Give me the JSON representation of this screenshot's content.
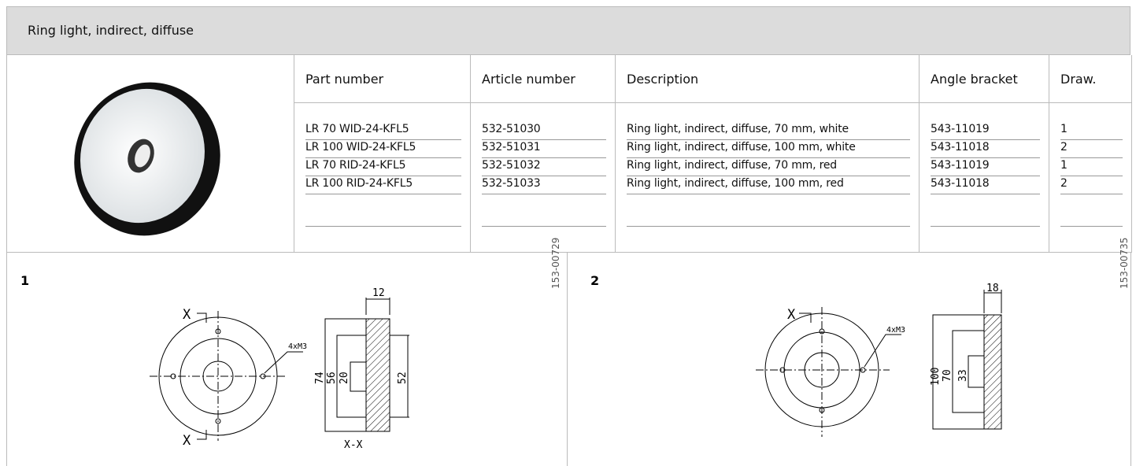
{
  "header": {
    "title": "Ring light, indirect, diffuse"
  },
  "table": {
    "columns": [
      "Part number",
      "Article number",
      "Description",
      "Angle bracket",
      "Draw."
    ],
    "rows": [
      [
        "LR 70 WID-24-KFL5",
        "532-51030",
        "Ring light, indirect, diffuse, 70 mm, white",
        "543-11019",
        "1"
      ],
      [
        "LR 100 WID-24-KFL5",
        "532-51031",
        "Ring light, indirect, diffuse, 100 mm, white",
        "543-11018",
        "2"
      ],
      [
        "LR 70 RID-24-KFL5",
        "532-51032",
        "Ring light, indirect, diffuse, 70 mm, red",
        "543-11019",
        "1"
      ],
      [
        "LR 100 RID-24-KFL5",
        "532-51033",
        "Ring light, indirect, diffuse, 100 mm, red",
        "543-11018",
        "2"
      ]
    ]
  },
  "drawings": [
    {
      "label": "1",
      "code": "153-00729",
      "annotations": [
        "X",
        "X",
        "12",
        "4xM3",
        "74",
        "56",
        "20",
        "52",
        "X-X"
      ]
    },
    {
      "label": "2",
      "code": "153-00735",
      "annotations": [
        "X",
        "4xM3",
        "18",
        "100",
        "70",
        "33"
      ]
    }
  ]
}
